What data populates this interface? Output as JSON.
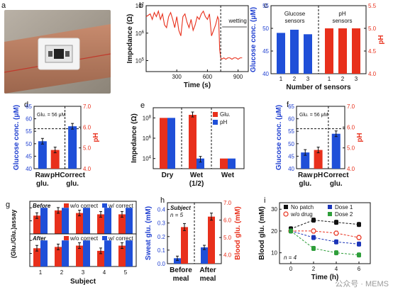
{
  "panel_letters": [
    "a",
    "b",
    "c",
    "d",
    "e",
    "f",
    "g",
    "h",
    "i"
  ],
  "watermark": "公众号 · MEMS",
  "colors": {
    "blue": "#1f4fd8",
    "red": "#e8301c",
    "navy": "#1c35b8",
    "green": "#2e9e3a",
    "black": "#111111",
    "axis_blue": "#1f3fd0",
    "axis_red": "#e8301c"
  },
  "photo": {
    "description_icon": "wearable-sensor-photo-icon"
  },
  "chart_data": [
    {
      "id": "b",
      "type": "line",
      "xlabel": "Time (s)",
      "ylabel": "Impedance (Ω)",
      "x_ticks": [
        "300",
        "600",
        "900"
      ],
      "y_ticks": [
        "10^5",
        "10^6",
        "10^7"
      ],
      "annotation": "wetting",
      "divider_x": 730,
      "xlim": [
        0,
        1000
      ],
      "ylim_log": [
        4.6,
        7.0
      ],
      "x": [
        0,
        40,
        60,
        80,
        100,
        120,
        140,
        160,
        180,
        200,
        220,
        240,
        260,
        280,
        300,
        320,
        340,
        360,
        380,
        400,
        420,
        440,
        460,
        480,
        500,
        520,
        540,
        560,
        580,
        600,
        620,
        640,
        660,
        680,
        700,
        710,
        720,
        730,
        740,
        760,
        780,
        800,
        820,
        840,
        860,
        880,
        900,
        920,
        940
      ],
      "y": [
        6.6,
        6.7,
        6.5,
        6.75,
        6.6,
        6.8,
        6.5,
        6.7,
        6.3,
        6.2,
        6.6,
        6.75,
        6.5,
        6.2,
        6.6,
        6.1,
        5.9,
        6.6,
        6.7,
        6.4,
        6.2,
        6.5,
        6.1,
        6.3,
        6.6,
        6.5,
        6.7,
        6.8,
        6.6,
        6.5,
        6.7,
        5.9,
        6.1,
        6.3,
        6.6,
        6.5,
        5.4,
        5.1,
        5.05,
        5.1,
        5.05,
        5.1,
        5.1,
        5.05,
        5.1,
        5.1,
        5.05,
        5.1,
        5.1
      ]
    },
    {
      "id": "c",
      "type": "bar",
      "xlabel": "Number of sensors",
      "ylabel": "Glucose conc. (μM)",
      "ylabel_right": "pH",
      "group_labels": [
        "Glucose sensors",
        "pH sensors"
      ],
      "categories": [
        "1",
        "2",
        "3",
        "1",
        "2",
        "3"
      ],
      "y_ticks": [
        "40",
        "45",
        "50",
        "55"
      ],
      "y_right_ticks": [
        "4.0",
        "4.5",
        "5.0",
        "5.5"
      ],
      "ylim": [
        40,
        55
      ],
      "ylim_right": [
        4.0,
        5.5
      ],
      "glucose_values": [
        49.0,
        49.7,
        48.7
      ],
      "ph_values": [
        5.0,
        5.0,
        5.0
      ]
    },
    {
      "id": "d",
      "type": "bar",
      "ylabel": "Glucose conc. (μM)",
      "ylabel_right": "pH",
      "annotation": "Glu. = 56 μM",
      "categories": [
        "Raw glu.",
        "pH",
        "Correct glu."
      ],
      "y_ticks": [
        "40",
        "45",
        "50",
        "55",
        "60",
        "65"
      ],
      "y_right_ticks": [
        "4.0",
        "5.0",
        "6.0",
        "7.0"
      ],
      "ylim": [
        40,
        65
      ],
      "ylim_right": [
        4.0,
        7.0
      ],
      "values": [
        {
          "axis": "left",
          "value": 51.0,
          "color": "blue"
        },
        {
          "axis": "right",
          "value": 4.9,
          "color": "red"
        },
        {
          "axis": "left",
          "value": 57.0,
          "color": "blue"
        }
      ],
      "ref_line": 56
    },
    {
      "id": "e",
      "type": "bar",
      "ylabel": "Impedance (Ω)",
      "legend": [
        "Glu.",
        "pH"
      ],
      "categories": [
        "Dry",
        "Wet (1/2)",
        "Wet"
      ],
      "y_ticks": [
        "10^4",
        "10^6",
        "10^8"
      ],
      "ylim_log": [
        3,
        9
      ],
      "glu_values_log": [
        8.0,
        8.3,
        4.0
      ],
      "ph_values_log": [
        8.0,
        4.0,
        4.0
      ]
    },
    {
      "id": "f",
      "type": "bar",
      "ylabel": "Glucose conc. (μM)",
      "ylabel_right": "pH",
      "annotation": "Glu. = 56 μM",
      "categories": [
        "Raw glu.",
        "pH",
        "Correct glu."
      ],
      "y_ticks": [
        "40",
        "45",
        "50",
        "55",
        "60",
        "65"
      ],
      "y_right_ticks": [
        "4.0",
        "5.0",
        "6.0",
        "7.0"
      ],
      "ylim": [
        40,
        65
      ],
      "ylim_right": [
        4.0,
        7.0
      ],
      "values": [
        {
          "axis": "left",
          "value": 46.5,
          "color": "blue"
        },
        {
          "axis": "right",
          "value": 4.9,
          "color": "red"
        },
        {
          "axis": "left",
          "value": 54.0,
          "color": "blue"
        }
      ],
      "ref_line": 56
    },
    {
      "id": "g",
      "type": "bar",
      "xlabel": "Subject",
      "ylabel": "(Glu./Glu.)assay",
      "legend": [
        "w/o correct",
        "w/ correct"
      ],
      "row_labels": [
        "Before",
        "After"
      ],
      "categories": [
        "1",
        "2",
        "3",
        "4",
        "5"
      ],
      "before_wo": [
        0.7,
        0.9,
        0.8,
        0.75,
        0.75
      ],
      "before_w": [
        1.0,
        1.0,
        1.0,
        1.0,
        1.0
      ],
      "after_wo": [
        0.7,
        0.75,
        0.8,
        0.6,
        0.8
      ],
      "after_w": [
        1.0,
        1.0,
        1.0,
        1.0,
        1.0
      ]
    },
    {
      "id": "h",
      "type": "bar",
      "ylabel": "Sweat glu. (mM)",
      "ylabel_right": "Blood glu. (mM)",
      "annotation": [
        "Subject",
        "n = 5"
      ],
      "categories": [
        "Before meal",
        "After meal"
      ],
      "y_ticks": [
        "0.0",
        "0.1",
        "0.2",
        "0.3",
        "0.4"
      ],
      "y_right_ticks": [
        "4.0",
        "5.0",
        "6.0",
        "7.0"
      ],
      "ylim": [
        0,
        0.45
      ],
      "ylim_right": [
        3.5,
        7.0
      ],
      "sweat": [
        0.04,
        0.12
      ],
      "blood": [
        5.6,
        6.2
      ]
    },
    {
      "id": "i",
      "type": "line",
      "xlabel": "Time (h)",
      "ylabel": "Blood glu. (mM)",
      "annotation": "n = 4",
      "x_ticks": [
        "0",
        "2",
        "4",
        "6"
      ],
      "y_ticks": [
        "10",
        "20",
        "30"
      ],
      "xlim": [
        -1,
        7
      ],
      "ylim": [
        5,
        33
      ],
      "x": [
        0,
        2,
        4,
        6
      ],
      "series": [
        {
          "name": "No patch",
          "color": "black",
          "values": [
            21,
            25,
            24,
            23
          ]
        },
        {
          "name": "w/o drug",
          "color": "red",
          "values": [
            20,
            20,
            19,
            17
          ]
        },
        {
          "name": "Dose 1",
          "color": "navy",
          "values": [
            20,
            17,
            15,
            14
          ]
        },
        {
          "name": "Dose 2",
          "color": "green",
          "values": [
            20,
            12,
            10,
            9
          ]
        }
      ]
    }
  ]
}
